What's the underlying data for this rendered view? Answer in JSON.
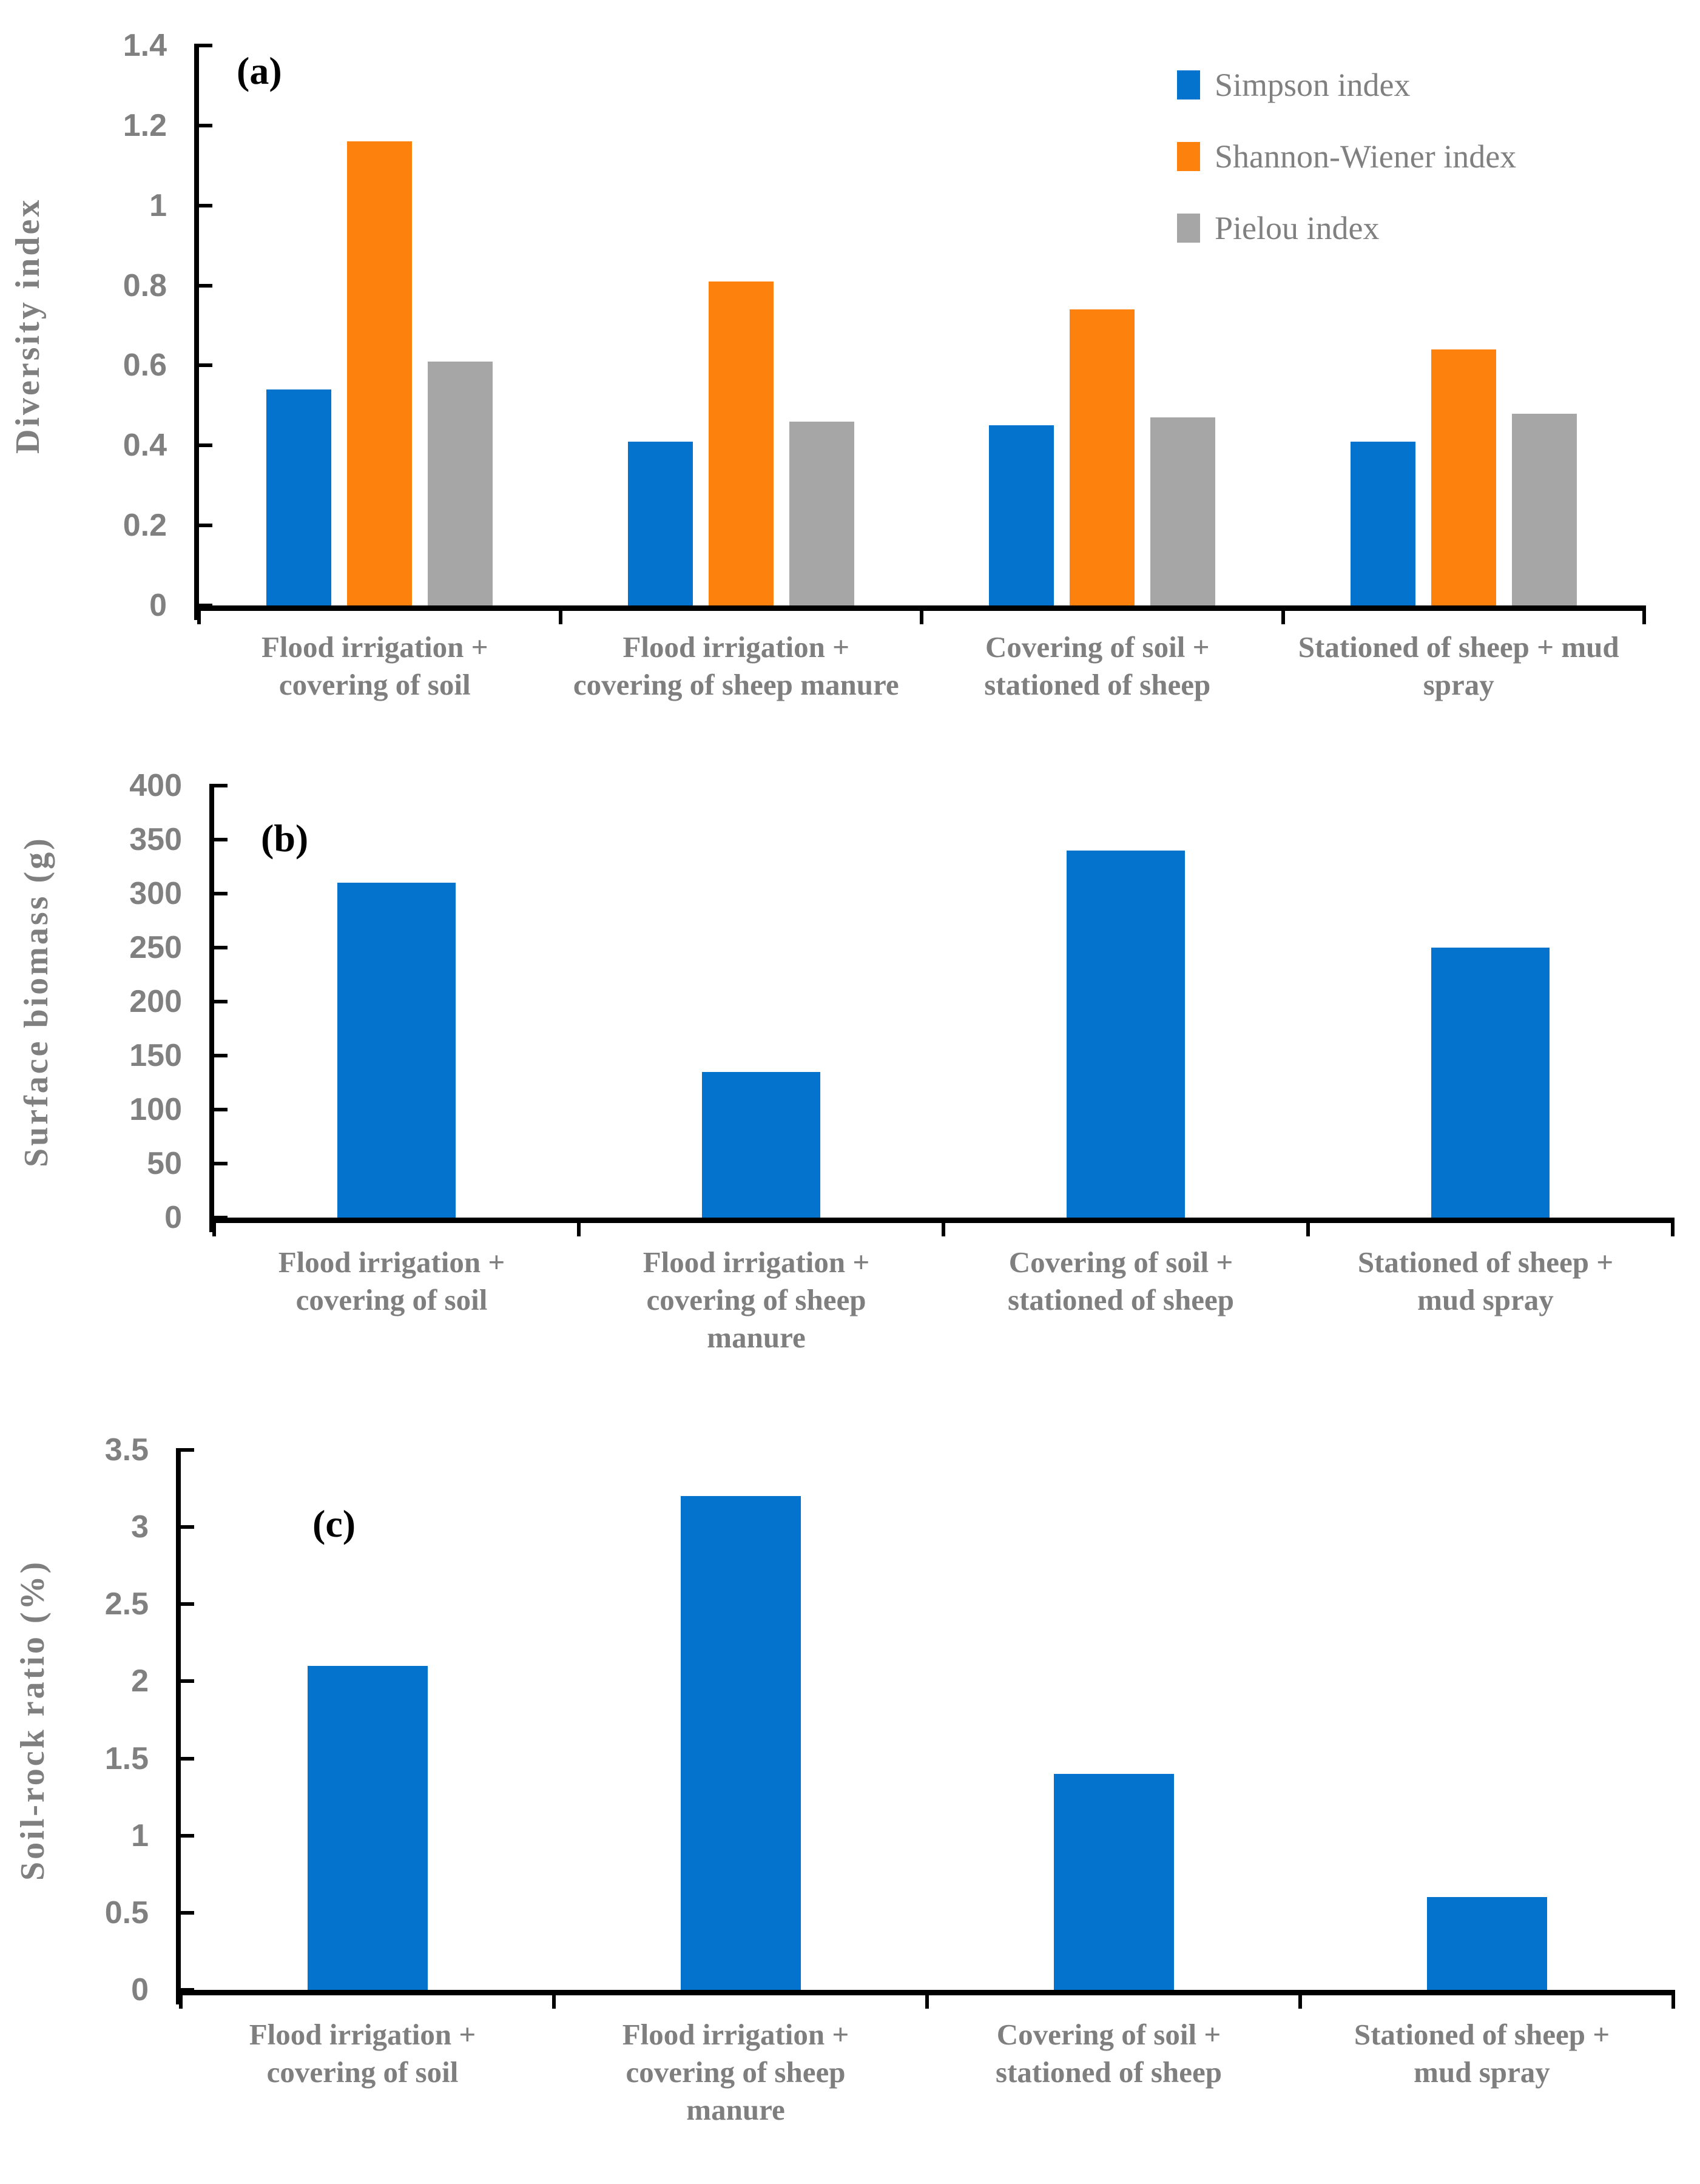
{
  "chart_data": [
    {
      "type": "bar",
      "panel_label": "(a)",
      "ylabel": "Diversity index",
      "ylim": [
        0,
        1.4
      ],
      "yticks": [
        "0",
        "0.2",
        "0.4",
        "0.6",
        "0.8",
        "1",
        "1.2",
        "1.4"
      ],
      "grid": false,
      "legend_position": "top-right",
      "categories": [
        "Flood irrigation + covering of soil",
        "Flood irrigation + covering of sheep manure",
        "Covering of soil + stationed of sheep",
        "Stationed of sheep + mud spray"
      ],
      "category_lines": [
        [
          "Flood irrigation +",
          "covering of soil"
        ],
        [
          "Flood irrigation +",
          "covering of sheep manure"
        ],
        [
          "Covering of soil +",
          "stationed of sheep"
        ],
        [
          "Stationed of sheep + mud",
          "spray"
        ]
      ],
      "series": [
        {
          "name": "Simpson index",
          "color": "#0373CE",
          "values": [
            0.54,
            0.41,
            0.45,
            0.41
          ]
        },
        {
          "name": "Shannon-Wiener index",
          "color": "#FC820D",
          "values": [
            1.16,
            0.81,
            0.74,
            0.64
          ]
        },
        {
          "name": "Pielou index",
          "color": "#A6A6A6",
          "values": [
            0.61,
            0.46,
            0.47,
            0.48
          ]
        }
      ]
    },
    {
      "type": "bar",
      "panel_label": "(b)",
      "ylabel": "Surface biomass (g)",
      "ylim": [
        0,
        400
      ],
      "yticks": [
        "0",
        "50",
        "100",
        "150",
        "200",
        "250",
        "300",
        "350",
        "400"
      ],
      "grid": false,
      "legend_position": "none",
      "categories": [
        "Flood irrigation + covering of soil",
        "Flood irrigation + covering of sheep manure",
        "Covering of soil + stationed of sheep",
        "Stationed of sheep + mud spray"
      ],
      "category_lines": [
        [
          "Flood irrigation +",
          "covering of soil"
        ],
        [
          "Flood irrigation +",
          "covering of sheep",
          "manure"
        ],
        [
          "Covering of soil +",
          "stationed of sheep"
        ],
        [
          "Stationed of sheep +",
          "mud spray"
        ]
      ],
      "series": [
        {
          "name": "Surface biomass",
          "color": "#0373CE",
          "values": [
            310,
            135,
            340,
            250
          ]
        }
      ]
    },
    {
      "type": "bar",
      "panel_label": "(c)",
      "ylabel": "Soil-rock ratio (%)",
      "ylim": [
        0,
        3.5
      ],
      "yticks": [
        "0",
        "0.5",
        "1",
        "1.5",
        "2",
        "2.5",
        "3",
        "3.5"
      ],
      "grid": false,
      "legend_position": "none",
      "categories": [
        "Flood irrigation + covering of soil",
        "Flood irrigation + covering of sheep manure",
        "Covering of soil + stationed of sheep",
        "Stationed of sheep + mud spray"
      ],
      "category_lines": [
        [
          "Flood irrigation +",
          "covering of soil"
        ],
        [
          "Flood irrigation +",
          "covering of sheep",
          "manure"
        ],
        [
          "Covering of soil +",
          "stationed of sheep"
        ],
        [
          "Stationed of sheep +",
          "mud spray"
        ]
      ],
      "series": [
        {
          "name": "Soil-rock ratio",
          "color": "#0373CE",
          "values": [
            2.1,
            3.2,
            1.4,
            0.6
          ]
        }
      ]
    }
  ],
  "colors": {
    "bar_blue": "#0373CE",
    "bar_orange": "#FC820D",
    "bar_gray": "#A6A6A6",
    "axis": "#000000",
    "text_gray": "#7F7F7F"
  }
}
